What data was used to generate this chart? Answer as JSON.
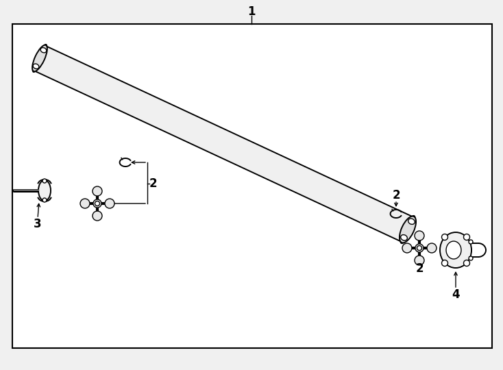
{
  "bg_color": "#f0f0f0",
  "box_color": "#ffffff",
  "line_color": "#000000",
  "fig_width": 7.34,
  "fig_height": 5.4,
  "dpi": 100,
  "label_1": "1",
  "label_2": "2",
  "label_3": "3",
  "label_4": "4",
  "label_font_size": 12
}
